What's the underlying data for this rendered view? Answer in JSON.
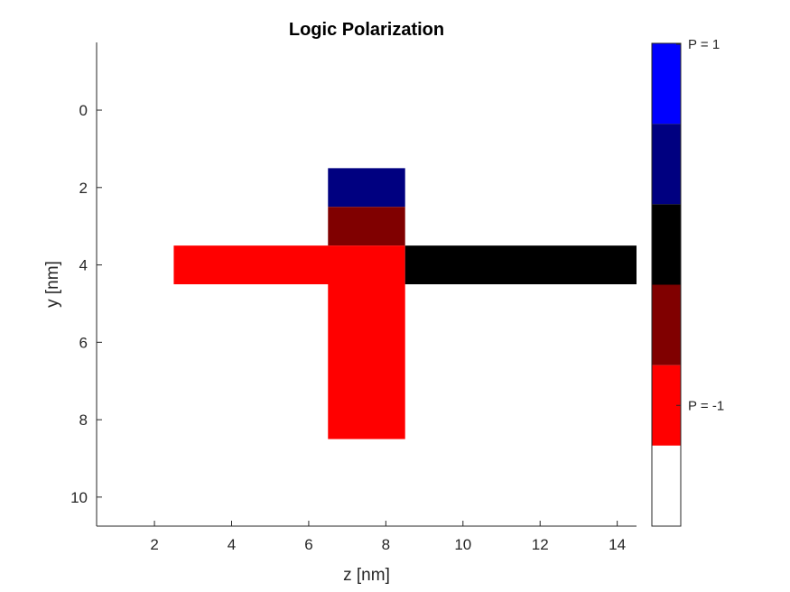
{
  "chart_data": {
    "type": "heatmap",
    "title": "Logic Polarization",
    "xlabel": "z [nm]",
    "ylabel": "y [nm]",
    "xlim": [
      0.5,
      14.5
    ],
    "ylim": [
      10.75,
      -1.75
    ],
    "y_reversed": true,
    "xticks": [
      2,
      4,
      6,
      8,
      10,
      12,
      14
    ],
    "yticks": [
      0,
      2,
      4,
      6,
      8,
      10
    ],
    "grid": false,
    "cells": [
      {
        "z": [
          6.5,
          8.5
        ],
        "y": [
          1.5,
          2.5
        ],
        "color": "#000080"
      },
      {
        "z": [
          6.5,
          8.5
        ],
        "y": [
          2.5,
          3.5
        ],
        "color": "#800000"
      },
      {
        "z": [
          2.5,
          8.5
        ],
        "y": [
          3.5,
          4.5
        ],
        "color": "#ff0000"
      },
      {
        "z": [
          8.5,
          14.5
        ],
        "y": [
          3.5,
          4.5
        ],
        "color": "#000000"
      },
      {
        "z": [
          6.5,
          8.5
        ],
        "y": [
          4.5,
          8.5
        ],
        "color": "#ff0000"
      }
    ],
    "colorbar": {
      "colors_top_to_bottom": [
        "#0000ff",
        "#000080",
        "#000000",
        "#800000",
        "#ff0000",
        "#ffffff"
      ],
      "labels": [
        {
          "text": "P = 1",
          "segment": 0,
          "position": "top"
        },
        {
          "text": "P = -1",
          "segment": 4,
          "position": "middle"
        }
      ]
    }
  }
}
